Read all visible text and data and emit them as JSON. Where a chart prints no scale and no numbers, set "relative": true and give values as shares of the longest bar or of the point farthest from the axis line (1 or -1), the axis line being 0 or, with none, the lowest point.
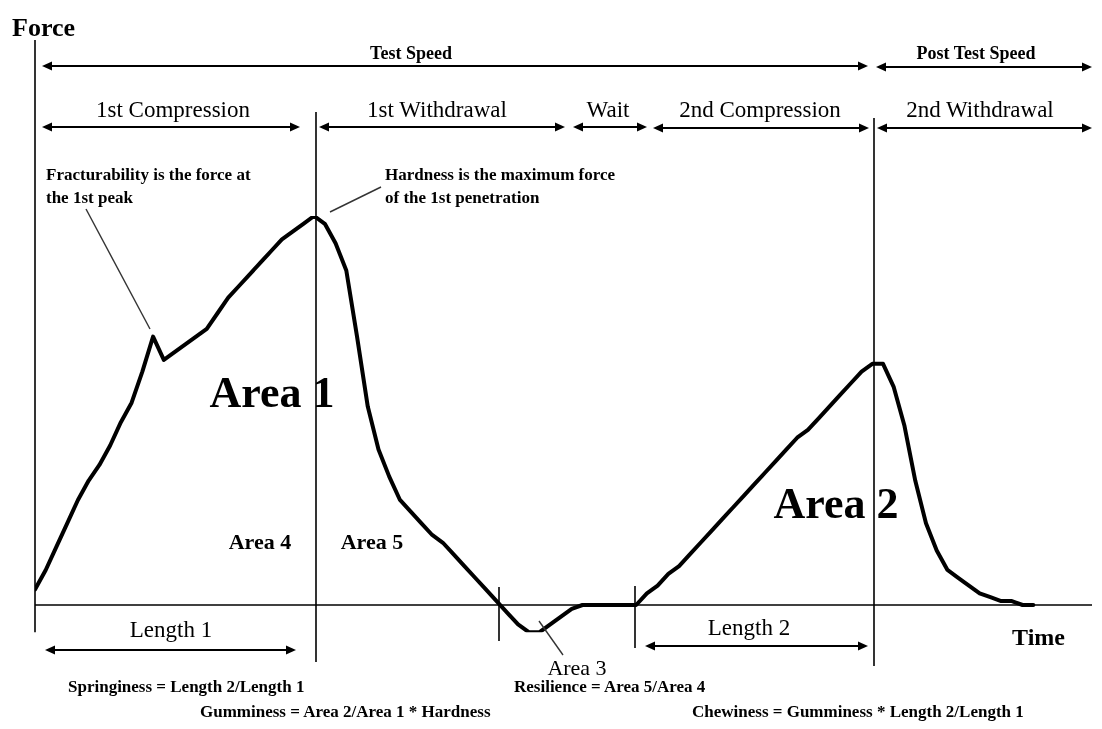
{
  "chart_data": {
    "type": "line",
    "relative": true,
    "xlabel": "Time",
    "categories": [
      null,
      null,
      null,
      null,
      null,
      null,
      null,
      null,
      null,
      null,
      null,
      null,
      null,
      null,
      null,
      null,
      null,
      null,
      null,
      null,
      null,
      null,
      null,
      null,
      null,
      null,
      null,
      null,
      null,
      null,
      null,
      null,
      null,
      null,
      null,
      null,
      null,
      null,
      null,
      null,
      null,
      null,
      null,
      null,
      null,
      null,
      null,
      null,
      null,
      null,
      null,
      null,
      null,
      null,
      null,
      null,
      null,
      null,
      null,
      null,
      null,
      null,
      null,
      null,
      null,
      null,
      null,
      null,
      null,
      null,
      null,
      null,
      null,
      null,
      null,
      null,
      null,
      null,
      null,
      null,
      null,
      null,
      null,
      null,
      null,
      null,
      null,
      null,
      null,
      null,
      null,
      null,
      null,
      null,
      null,
      null,
      null,
      null,
      null
    ],
    "values": [
      0.04,
      0.09,
      0.15,
      0.21,
      0.27,
      0.32,
      0.36,
      0.41,
      0.47,
      0.52,
      0.6,
      0.69,
      0.63,
      0.65,
      0.67,
      0.69,
      0.71,
      0.75,
      0.79,
      0.82,
      0.85,
      0.88,
      0.91,
      0.94,
      0.96,
      0.98,
      1,
      0.98,
      0.93,
      0.86,
      0.69,
      0.51,
      0.4,
      0.33,
      0.27,
      0.24,
      0.21,
      0.18,
      0.16,
      0.13,
      0.1,
      0.07,
      0.04,
      0.01,
      -0.02,
      -0.05,
      -0.07,
      -0.07,
      -0.05,
      -0.03,
      -0.01,
      0,
      0,
      0,
      0,
      0,
      0,
      0.03,
      0.05,
      0.08,
      0.1,
      0.13,
      0.16,
      0.19,
      0.22,
      0.25,
      0.28,
      0.31,
      0.34,
      0.37,
      0.4,
      0.43,
      0.45,
      0.48,
      0.51,
      0.54,
      0.57,
      0.6,
      0.62,
      0.62,
      0.56,
      0.46,
      0.32,
      0.21,
      0.14,
      0.09,
      0.07,
      0.05,
      0.03,
      0.02,
      0.01,
      0.01,
      0,
      0,
      null,
      null,
      null,
      null,
      null
    ],
    "color": "#000000",
    "annotations": [
      "Force",
      "Test Speed",
      "Post Test Speed",
      "1st Compression",
      "1st Withdrawal",
      "Wait",
      "2nd Compression",
      "2nd Withdrawal",
      "Fracturability is the force at the 1st peak",
      "Hardness is the maximum force of the 1st penetration",
      "Area 1",
      "Area 2",
      "Area 4",
      "Area 5",
      "Length 1",
      "Length 2",
      "Area 3",
      "Springiness = Length 2/Length 1",
      "Resilience = Area 5/Area 4",
      "Gumminess = Area 2/Area 1 * Hardness",
      "Chewiness = Gumminess * Length 2/Length 1"
    ]
  }
}
